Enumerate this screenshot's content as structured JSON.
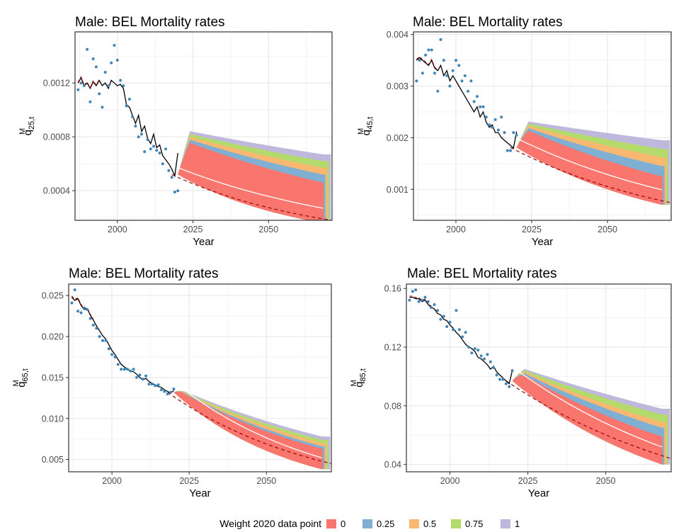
{
  "colors": {
    "w0": "#F8766D",
    "w025": "#7FAFD3",
    "w05": "#F8B871",
    "w075": "#B3DA6B",
    "w1": "#BEB9DC",
    "observed_points": "#3F86B8",
    "fitted_line": "#000000",
    "bel_dashed": "#A00000",
    "median_line": "#FFFFFF"
  },
  "legend": {
    "title": "Weight 2020 data point",
    "entries": [
      {
        "label": "0",
        "color": "#F8766D"
      },
      {
        "label": "0.25",
        "color": "#7FAFD3"
      },
      {
        "label": "0.5",
        "color": "#F8B871"
      },
      {
        "label": "0.75",
        "color": "#B3DA6B"
      },
      {
        "label": "1",
        "color": "#BEB9DC"
      }
    ]
  },
  "chart_data": [
    {
      "type": "area",
      "title": "Male: BEL Mortality rates",
      "xlabel": "Year",
      "ylabel": "q",
      "ylabel_sup": "M",
      "ylabel_sub": "25,t",
      "xlim": [
        1986,
        2071
      ],
      "ylim": [
        0.00018,
        0.00158
      ],
      "xticks": [
        2000,
        2025,
        2050
      ],
      "xtick_labels": [
        "2000",
        "2025",
        "2050"
      ],
      "yticks": [
        0.0004,
        0.0008,
        0.0012
      ],
      "ytick_labels": [
        "0.0004",
        "0.0008",
        "0.0012"
      ],
      "observed": [
        0.00115,
        0.0012,
        0.00118,
        0.00145,
        0.00106,
        0.00138,
        0.00132,
        0.00112,
        0.00102,
        0.00128,
        0.00118,
        0.00135,
        0.00148,
        0.00137,
        0.00122,
        0.00118,
        0.00103,
        0.00108,
        0.00095,
        0.00088,
        0.0008,
        0.00082,
        0.00069,
        0.00078,
        0.00071,
        0.00073,
        0.0007,
        0.00068,
        0.0006,
        0.00071,
        0.00055,
        0.0005,
        0.00039,
        0.0004
      ],
      "fitted": [
        0.0012,
        0.00124,
        0.00118,
        0.0012,
        0.00116,
        0.00121,
        0.00118,
        0.00122,
        0.00118,
        0.0012,
        0.00116,
        0.00122,
        0.0012,
        0.00118,
        0.00119,
        0.00116,
        0.00104,
        0.00102,
        0.00096,
        0.0009,
        0.00096,
        0.00084,
        0.00088,
        0.00079,
        0.00075,
        0.00082,
        0.00072,
        0.00074,
        0.00066,
        0.00063,
        0.0006,
        0.00056,
        0.00051,
        0.00068
      ],
      "bel_start": 0.00052,
      "bel_end": 0.00018,
      "median_end": 0.00027,
      "bands": [
        {
          "weight": "0",
          "lower_end": 0.00016,
          "upper_end": 0.00046
        },
        {
          "weight": "0.25",
          "lower_end": 0.00016,
          "upper_end": 0.00052
        },
        {
          "weight": "0.5",
          "lower_end": 0.00016,
          "upper_end": 0.00057
        },
        {
          "weight": "0.75",
          "lower_end": 0.00016,
          "upper_end": 0.00062
        },
        {
          "weight": "1",
          "lower_end": 0.00016,
          "upper_end": 0.00067
        }
      ],
      "band_start_upper": 0.00086
    },
    {
      "type": "area",
      "title": "Male: BEL Mortality rates",
      "xlabel": "Year",
      "ylabel": "q",
      "ylabel_sup": "M",
      "ylabel_sub": "45,t",
      "xlim": [
        1986,
        2071
      ],
      "ylim": [
        0.0004,
        0.00405
      ],
      "xticks": [
        2000,
        2025,
        2050
      ],
      "xtick_labels": [
        "2000",
        "2025",
        "2050"
      ],
      "yticks": [
        0.001,
        0.002,
        0.003,
        0.004
      ],
      "ytick_labels": [
        "0.001",
        "0.002",
        "0.003",
        "0.004"
      ],
      "observed": [
        0.0031,
        0.0035,
        0.00325,
        0.0036,
        0.0037,
        0.0037,
        0.00325,
        0.0029,
        0.0039,
        0.0035,
        0.0032,
        0.003,
        0.0033,
        0.0035,
        0.0034,
        0.0031,
        0.0032,
        0.0029,
        0.0031,
        0.0027,
        0.0028,
        0.0026,
        0.0026,
        0.0024,
        0.00225,
        0.0022,
        0.00235,
        0.00215,
        0.0024,
        0.0021,
        0.00175,
        0.00175,
        0.0021,
        0.00205
      ],
      "fitted": [
        0.0035,
        0.00355,
        0.0035,
        0.00345,
        0.0034,
        0.0035,
        0.00335,
        0.0033,
        0.0034,
        0.0032,
        0.0033,
        0.0031,
        0.0032,
        0.0031,
        0.003,
        0.0029,
        0.0028,
        0.0027,
        0.0026,
        0.0025,
        0.0026,
        0.0024,
        0.0025,
        0.0023,
        0.0022,
        0.00225,
        0.0021,
        0.0021,
        0.002,
        0.00195,
        0.0019,
        0.00185,
        0.0018,
        0.00212
      ],
      "bel_start": 0.00181,
      "bel_end": 0.00074,
      "median_end": 0.00099,
      "bands": [
        {
          "weight": "0",
          "lower_end": 0.0007,
          "upper_end": 0.00125
        },
        {
          "weight": "0.25",
          "lower_end": 0.0007,
          "upper_end": 0.00145
        },
        {
          "weight": "0.5",
          "lower_end": 0.0007,
          "upper_end": 0.00162
        },
        {
          "weight": "0.75",
          "lower_end": 0.0007,
          "upper_end": 0.00178
        },
        {
          "weight": "1",
          "lower_end": 0.0007,
          "upper_end": 0.00195
        }
      ],
      "band_start_upper": 0.00235
    },
    {
      "type": "area",
      "title": "Male: BEL Mortality rates",
      "xlabel": "Year",
      "ylabel": "q",
      "ylabel_sup": "M",
      "ylabel_sub": "65,t",
      "xlim": [
        1986,
        2071
      ],
      "ylim": [
        0.0035,
        0.0264
      ],
      "xticks": [
        2000,
        2025,
        2050
      ],
      "xtick_labels": [
        "2000",
        "2025",
        "2050"
      ],
      "yticks": [
        0.005,
        0.01,
        0.015,
        0.02,
        0.025
      ],
      "ytick_labels": [
        "0.005",
        "0.010",
        "0.015",
        "0.020",
        "0.025"
      ],
      "observed": [
        0.0241,
        0.0257,
        0.0231,
        0.0229,
        0.0235,
        0.0233,
        0.0222,
        0.0214,
        0.021,
        0.02,
        0.0195,
        0.0195,
        0.0185,
        0.0178,
        0.0175,
        0.0166,
        0.016,
        0.016,
        0.016,
        0.0158,
        0.016,
        0.015,
        0.0153,
        0.0148,
        0.0152,
        0.0142,
        0.0142,
        0.014,
        0.0141,
        0.0135,
        0.0133,
        0.013,
        0.0132,
        0.0136
      ],
      "fitted": [
        0.0248,
        0.0244,
        0.0246,
        0.0238,
        0.0233,
        0.0234,
        0.0226,
        0.022,
        0.0213,
        0.0207,
        0.0201,
        0.0197,
        0.019,
        0.0183,
        0.0178,
        0.0172,
        0.0166,
        0.0163,
        0.016,
        0.0158,
        0.0157,
        0.0154,
        0.015,
        0.0147,
        0.0149,
        0.0145,
        0.0143,
        0.0141,
        0.0139,
        0.0138,
        0.0135,
        0.0133,
        0.0131,
        0.0134
      ],
      "bel_start": 0.0132,
      "bel_end": 0.0045,
      "median_end": 0.0052,
      "bands": [
        {
          "weight": "0",
          "lower_end": 0.0038,
          "upper_end": 0.0063
        },
        {
          "weight": "0.25",
          "lower_end": 0.0038,
          "upper_end": 0.0066
        },
        {
          "weight": "0.5",
          "lower_end": 0.0038,
          "upper_end": 0.007
        },
        {
          "weight": "0.75",
          "lower_end": 0.0038,
          "upper_end": 0.0074
        },
        {
          "weight": "1",
          "lower_end": 0.0038,
          "upper_end": 0.0078
        }
      ],
      "band_start_upper": 0.0139
    },
    {
      "type": "area",
      "title": "Male: BEL Mortality rates",
      "xlabel": "Year",
      "ylabel": "q",
      "ylabel_sup": "M",
      "ylabel_sub": "85,t",
      "xlim": [
        1986,
        2071
      ],
      "ylim": [
        0.035,
        0.163
      ],
      "xticks": [
        2000,
        2025,
        2050
      ],
      "xtick_labels": [
        "2000",
        "2025",
        "2050"
      ],
      "yticks": [
        0.04,
        0.08,
        0.12,
        0.16
      ],
      "ytick_labels": [
        "0.04",
        "0.08",
        "0.12",
        "0.16"
      ],
      "observed": [
        0.152,
        0.158,
        0.159,
        0.151,
        0.152,
        0.154,
        0.151,
        0.147,
        0.149,
        0.145,
        0.139,
        0.141,
        0.134,
        0.137,
        0.132,
        0.145,
        0.132,
        0.127,
        0.13,
        0.12,
        0.116,
        0.119,
        0.118,
        0.114,
        0.112,
        0.115,
        0.11,
        0.106,
        0.101,
        0.098,
        0.098,
        0.095,
        0.093,
        0.104
      ],
      "fitted": [
        0.154,
        0.154,
        0.153,
        0.153,
        0.151,
        0.152,
        0.149,
        0.147,
        0.146,
        0.143,
        0.142,
        0.139,
        0.138,
        0.135,
        0.133,
        0.13,
        0.128,
        0.125,
        0.122,
        0.12,
        0.119,
        0.117,
        0.113,
        0.112,
        0.11,
        0.108,
        0.105,
        0.107,
        0.103,
        0.101,
        0.099,
        0.097,
        0.095,
        0.104
      ],
      "bel_start": 0.097,
      "bel_end": 0.044,
      "median_end": 0.052,
      "bands": [
        {
          "weight": "0",
          "lower_end": 0.04,
          "upper_end": 0.059
        },
        {
          "weight": "0.25",
          "lower_end": 0.04,
          "upper_end": 0.065
        },
        {
          "weight": "0.5",
          "lower_end": 0.04,
          "upper_end": 0.069
        },
        {
          "weight": "0.75",
          "lower_end": 0.04,
          "upper_end": 0.074
        },
        {
          "weight": "1",
          "lower_end": 0.04,
          "upper_end": 0.078
        }
      ],
      "band_start_upper": 0.108
    }
  ]
}
